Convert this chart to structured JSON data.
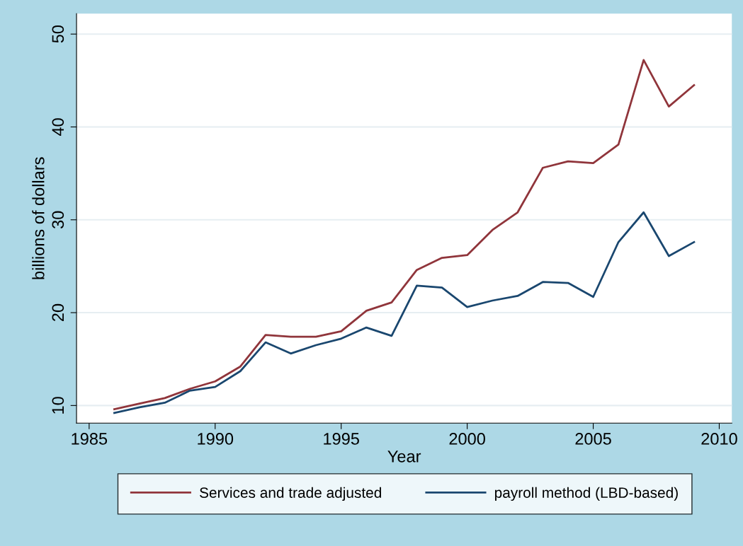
{
  "chart_data": {
    "type": "line",
    "xlabel": "Year",
    "ylabel": "billions of dollars",
    "x": [
      1986,
      1987,
      1988,
      1989,
      1990,
      1991,
      1992,
      1993,
      1994,
      1995,
      1996,
      1997,
      1998,
      1999,
      2000,
      2001,
      2002,
      2003,
      2004,
      2005,
      2006,
      2007,
      2008,
      2009
    ],
    "series": [
      {
        "name": "Services and trade adjusted",
        "color": "#90353b",
        "values": [
          9.6,
          10.2,
          10.8,
          11.8,
          12.6,
          14.2,
          17.6,
          17.4,
          17.4,
          18.0,
          20.2,
          21.1,
          24.6,
          25.9,
          26.2,
          28.9,
          30.8,
          35.6,
          36.3,
          36.1,
          38.1,
          47.2,
          42.2,
          44.5
        ]
      },
      {
        "name": "payroll method (LBD-based)",
        "color": "#1a476f",
        "values": [
          9.2,
          9.8,
          10.3,
          11.6,
          12.0,
          13.7,
          16.8,
          15.6,
          16.5,
          17.2,
          18.4,
          17.5,
          22.9,
          22.7,
          20.6,
          21.3,
          21.8,
          23.3,
          23.2,
          21.7,
          27.6,
          30.8,
          26.1,
          27.6
        ]
      }
    ],
    "xlim": [
      1984.5,
      2010.5
    ],
    "ylim": [
      8.1,
      52.2
    ],
    "xticks": [
      1985,
      1990,
      1995,
      2000,
      2005,
      2010
    ],
    "yticks": [
      10,
      20,
      30,
      40,
      50
    ],
    "grid": "y",
    "legend": "bottom",
    "marker": "none",
    "line_style": "solid"
  }
}
